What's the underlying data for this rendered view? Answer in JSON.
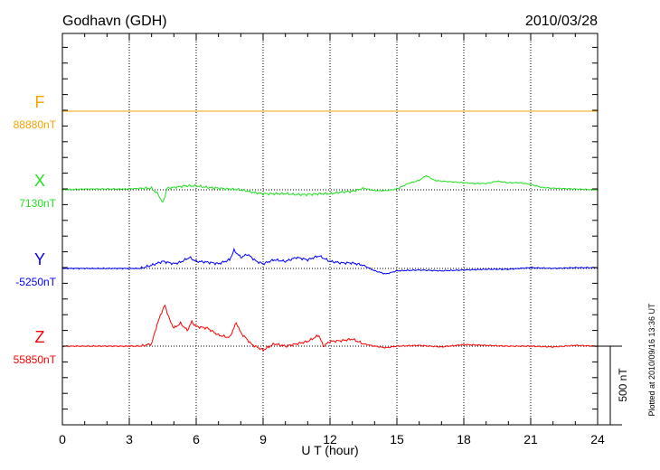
{
  "chart_data": {
    "type": "line",
    "title": "Godhavn (GDH)",
    "date": "2010/03/28",
    "xlabel": "U T (hour)",
    "xlim": [
      0,
      24
    ],
    "xticks": [
      "0",
      "3",
      "6",
      "9",
      "12",
      "15",
      "18",
      "21",
      "24"
    ],
    "scale_label": "500 nT",
    "scale_nT": 500,
    "footer": "Plotted at 2010/09/16 13:36 UT",
    "grid": true,
    "series": [
      {
        "name": "F",
        "baseline_label": "88880nT",
        "color": "#f5a300",
        "x": [
          0,
          24
        ],
        "values": [
          0,
          0
        ]
      },
      {
        "name": "X",
        "baseline_label": "7130nT",
        "color": "#22e022",
        "x": [
          0,
          1,
          2,
          3,
          3.5,
          4,
          4.3,
          4.5,
          4.7,
          5,
          5.5,
          6,
          6.5,
          7,
          7.5,
          8,
          8.5,
          9,
          9.5,
          10,
          10.5,
          11,
          11.5,
          12,
          12.5,
          13,
          13.5,
          14,
          14.5,
          15,
          15.5,
          16,
          16.3,
          16.7,
          17,
          17.5,
          18,
          18.5,
          19,
          19.5,
          20,
          20.5,
          21,
          21.5,
          22,
          23,
          24
        ],
        "values": [
          0,
          5,
          5,
          5,
          10,
          10,
          -30,
          -85,
          10,
          15,
          25,
          25,
          15,
          10,
          5,
          0,
          -15,
          -25,
          -25,
          -25,
          -30,
          -30,
          -25,
          -25,
          -15,
          -10,
          10,
          -5,
          -5,
          5,
          40,
          60,
          90,
          60,
          55,
          50,
          45,
          40,
          40,
          55,
          45,
          45,
          35,
          15,
          10,
          5,
          0
        ]
      },
      {
        "name": "Y",
        "baseline_label": "-5250nT",
        "color": "#0000ff",
        "x": [
          0,
          1,
          2,
          3,
          3.5,
          4,
          4.5,
          5,
          5.3,
          5.7,
          6,
          6.5,
          7,
          7.5,
          7.7,
          8,
          8.3,
          8.7,
          9,
          9.5,
          10,
          10.5,
          11,
          11.5,
          12,
          12.5,
          13,
          13.5,
          14,
          14.5,
          15,
          16,
          17,
          18,
          19,
          20,
          21,
          22,
          23,
          24
        ],
        "values": [
          0,
          0,
          0,
          0,
          0,
          20,
          45,
          30,
          40,
          70,
          45,
          40,
          30,
          55,
          115,
          70,
          90,
          45,
          30,
          55,
          45,
          70,
          55,
          80,
          45,
          35,
          35,
          20,
          -15,
          -35,
          -15,
          -10,
          -15,
          -10,
          -5,
          -5,
          5,
          0,
          5,
          5
        ]
      },
      {
        "name": "Z",
        "baseline_label": "55850nT",
        "color": "#ff0000",
        "x": [
          0,
          1,
          2,
          3,
          3.5,
          4,
          4.2,
          4.4,
          4.6,
          4.8,
          5,
          5.3,
          5.6,
          5.8,
          6,
          6.5,
          7,
          7.5,
          7.8,
          8,
          8.5,
          9,
          9.5,
          10,
          10.5,
          11,
          11.5,
          11.7,
          12,
          12.5,
          13,
          13.5,
          14,
          14.5,
          15,
          16,
          17,
          18,
          19,
          20,
          21,
          22,
          23,
          24
        ],
        "values": [
          0,
          0,
          0,
          0,
          0,
          15,
          115,
          200,
          260,
          170,
          115,
          145,
          100,
          155,
          125,
          115,
          70,
          55,
          150,
          85,
          10,
          -25,
          15,
          0,
          15,
          30,
          70,
          0,
          30,
          35,
          45,
          15,
          0,
          -10,
          0,
          5,
          -5,
          10,
          5,
          0,
          0,
          -5,
          5,
          0
        ]
      }
    ]
  }
}
